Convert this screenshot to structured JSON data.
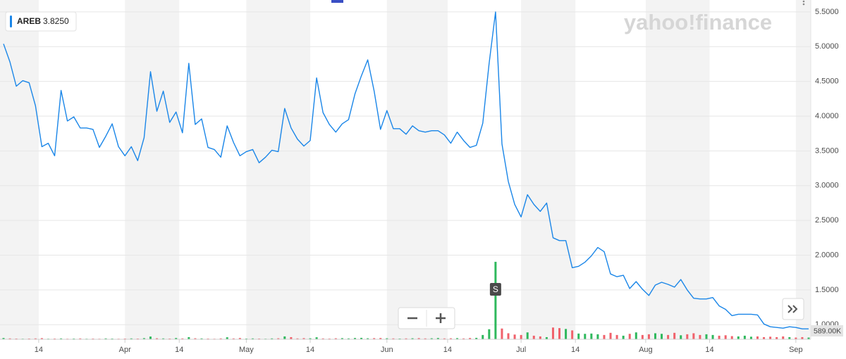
{
  "chart_data": {
    "type": "line",
    "watermark": "yahoo!finance",
    "legend_value": "3.8250",
    "x": [
      0,
      1,
      2,
      3,
      4,
      5,
      6,
      7,
      8,
      9,
      10,
      11,
      12,
      13,
      14,
      15,
      16,
      17,
      18,
      19,
      20,
      21,
      22,
      23,
      24,
      25,
      26,
      27,
      28,
      29,
      30,
      31,
      32,
      33,
      34,
      35,
      36,
      37,
      38,
      39,
      40,
      41,
      42,
      43,
      44,
      45,
      46,
      47,
      48,
      49,
      50,
      51,
      52,
      53,
      54,
      55,
      56,
      57,
      58,
      59,
      60,
      61,
      62,
      63,
      64,
      65,
      66,
      67,
      68,
      69,
      70,
      71,
      72,
      73,
      74,
      75,
      76,
      77,
      78,
      79,
      80,
      81,
      82,
      83,
      84,
      85,
      86,
      87,
      88,
      89,
      90,
      91,
      92,
      93,
      94,
      95,
      96,
      97,
      98,
      99,
      100,
      101,
      102,
      103,
      104,
      105,
      106,
      107,
      108,
      109,
      110,
      111,
      112,
      113,
      114,
      115,
      116,
      117,
      118,
      119,
      120,
      121,
      122,
      123,
      124,
      125,
      126
    ],
    "series": [
      {
        "name": "AREB",
        "color": "#1a86e8",
        "values": [
          5.04,
          4.78,
          4.43,
          4.51,
          4.48,
          4.15,
          3.56,
          3.61,
          3.43,
          4.37,
          3.93,
          3.99,
          3.83,
          3.83,
          3.81,
          3.55,
          3.71,
          3.89,
          3.56,
          3.43,
          3.56,
          3.36,
          3.69,
          4.64,
          4.07,
          4.36,
          3.91,
          4.06,
          3.76,
          4.76,
          3.88,
          3.96,
          3.55,
          3.52,
          3.41,
          3.86,
          3.62,
          3.43,
          3.49,
          3.52,
          3.33,
          3.41,
          3.51,
          3.49,
          4.11,
          3.83,
          3.67,
          3.57,
          3.65,
          4.55,
          4.05,
          3.88,
          3.77,
          3.89,
          3.95,
          4.32,
          4.58,
          4.81,
          4.36,
          3.81,
          4.08,
          3.82,
          3.82,
          3.74,
          3.86,
          3.79,
          3.77,
          3.79,
          3.79,
          3.73,
          3.61,
          3.77,
          3.65,
          3.55,
          3.58,
          3.9,
          4.76,
          5.5,
          3.6,
          3.06,
          2.73,
          2.55,
          2.87,
          2.73,
          2.63,
          2.75,
          2.25,
          2.21,
          2.21,
          1.82,
          1.84,
          1.9,
          1.99,
          2.11,
          2.05,
          1.73,
          1.69,
          1.71,
          1.52,
          1.62,
          1.51,
          1.42,
          1.57,
          1.61,
          1.58,
          1.54,
          1.65,
          1.5,
          1.38,
          1.37,
          1.37,
          1.39,
          1.27,
          1.22,
          1.13,
          1.15,
          1.15,
          1.15,
          1.14,
          1.01,
          0.97,
          0.96,
          0.95,
          0.97,
          0.96,
          0.94,
          0.94
        ]
      }
    ],
    "volume": {
      "axis": "y2",
      "up_color": "#2eb85c",
      "down_color": "#f0616b",
      "values": [
        90000,
        60000,
        50000,
        40000,
        50000,
        60000,
        80000,
        40000,
        50000,
        60000,
        40000,
        50000,
        60000,
        40000,
        50000,
        40000,
        60000,
        50000,
        40000,
        50000,
        60000,
        50000,
        80000,
        190000,
        70000,
        60000,
        50000,
        90000,
        60000,
        150000,
        70000,
        60000,
        50000,
        40000,
        60000,
        140000,
        60000,
        90000,
        50000,
        60000,
        50000,
        40000,
        60000,
        70000,
        200000,
        150000,
        60000,
        80000,
        70000,
        140000,
        60000,
        50000,
        70000,
        80000,
        60000,
        90000,
        100000,
        70000,
        80000,
        90000,
        70000,
        60000,
        50000,
        60000,
        70000,
        80000,
        60000,
        70000,
        90000,
        60000,
        70000,
        80000,
        60000,
        90000,
        100000,
        300000,
        700000,
        5400000,
        750000,
        420000,
        330000,
        300000,
        480000,
        250000,
        200000,
        150000,
        820000,
        780000,
        720000,
        620000,
        400000,
        380000,
        400000,
        350000,
        300000,
        450000,
        300000,
        250000,
        380000,
        480000,
        300000,
        350000,
        420000,
        380000,
        300000,
        450000,
        280000,
        350000,
        420000,
        300000,
        350000,
        300000,
        250000,
        280000,
        220000,
        200000,
        250000,
        180000,
        200000,
        150000,
        180000,
        150000,
        200000,
        150000,
        120000,
        150000,
        120000
      ]
    },
    "events": [
      {
        "x": 77,
        "label": "S"
      }
    ],
    "xlim": [
      0,
      126
    ],
    "xticks": [
      {
        "value": 5.5,
        "label": "14"
      },
      {
        "value": 19,
        "label": "Apr"
      },
      {
        "value": 27.5,
        "label": "14"
      },
      {
        "value": 38,
        "label": "May"
      },
      {
        "value": 48,
        "label": "14"
      },
      {
        "value": 60,
        "label": "Jun"
      },
      {
        "value": 69.5,
        "label": "14"
      },
      {
        "value": 81,
        "label": "Jul"
      },
      {
        "value": 89.5,
        "label": "14"
      },
      {
        "value": 100.5,
        "label": "Aug"
      },
      {
        "value": 110.5,
        "label": "14"
      },
      {
        "value": 124,
        "label": "Sep"
      }
    ],
    "ylim": [
      0.79,
      5.62
    ],
    "yticks": [
      {
        "value": 1,
        "label": "1.0000"
      },
      {
        "value": 1.5,
        "label": "1.5000"
      },
      {
        "value": 2,
        "label": "2.0000"
      },
      {
        "value": 2.5,
        "label": "2.5000"
      },
      {
        "value": 3,
        "label": "3.0000"
      },
      {
        "value": 3.5,
        "label": "3.5000"
      },
      {
        "value": 4,
        "label": "4.0000"
      },
      {
        "value": 4.5,
        "label": "4.5000"
      },
      {
        "value": 5,
        "label": "5.0000"
      },
      {
        "value": 5.5,
        "label": "5.5000"
      }
    ],
    "y2lim": [
      0,
      23400000
    ],
    "y2ticks": [
      {
        "value": 589000,
        "label": "589.00K"
      }
    ],
    "grid": true
  }
}
